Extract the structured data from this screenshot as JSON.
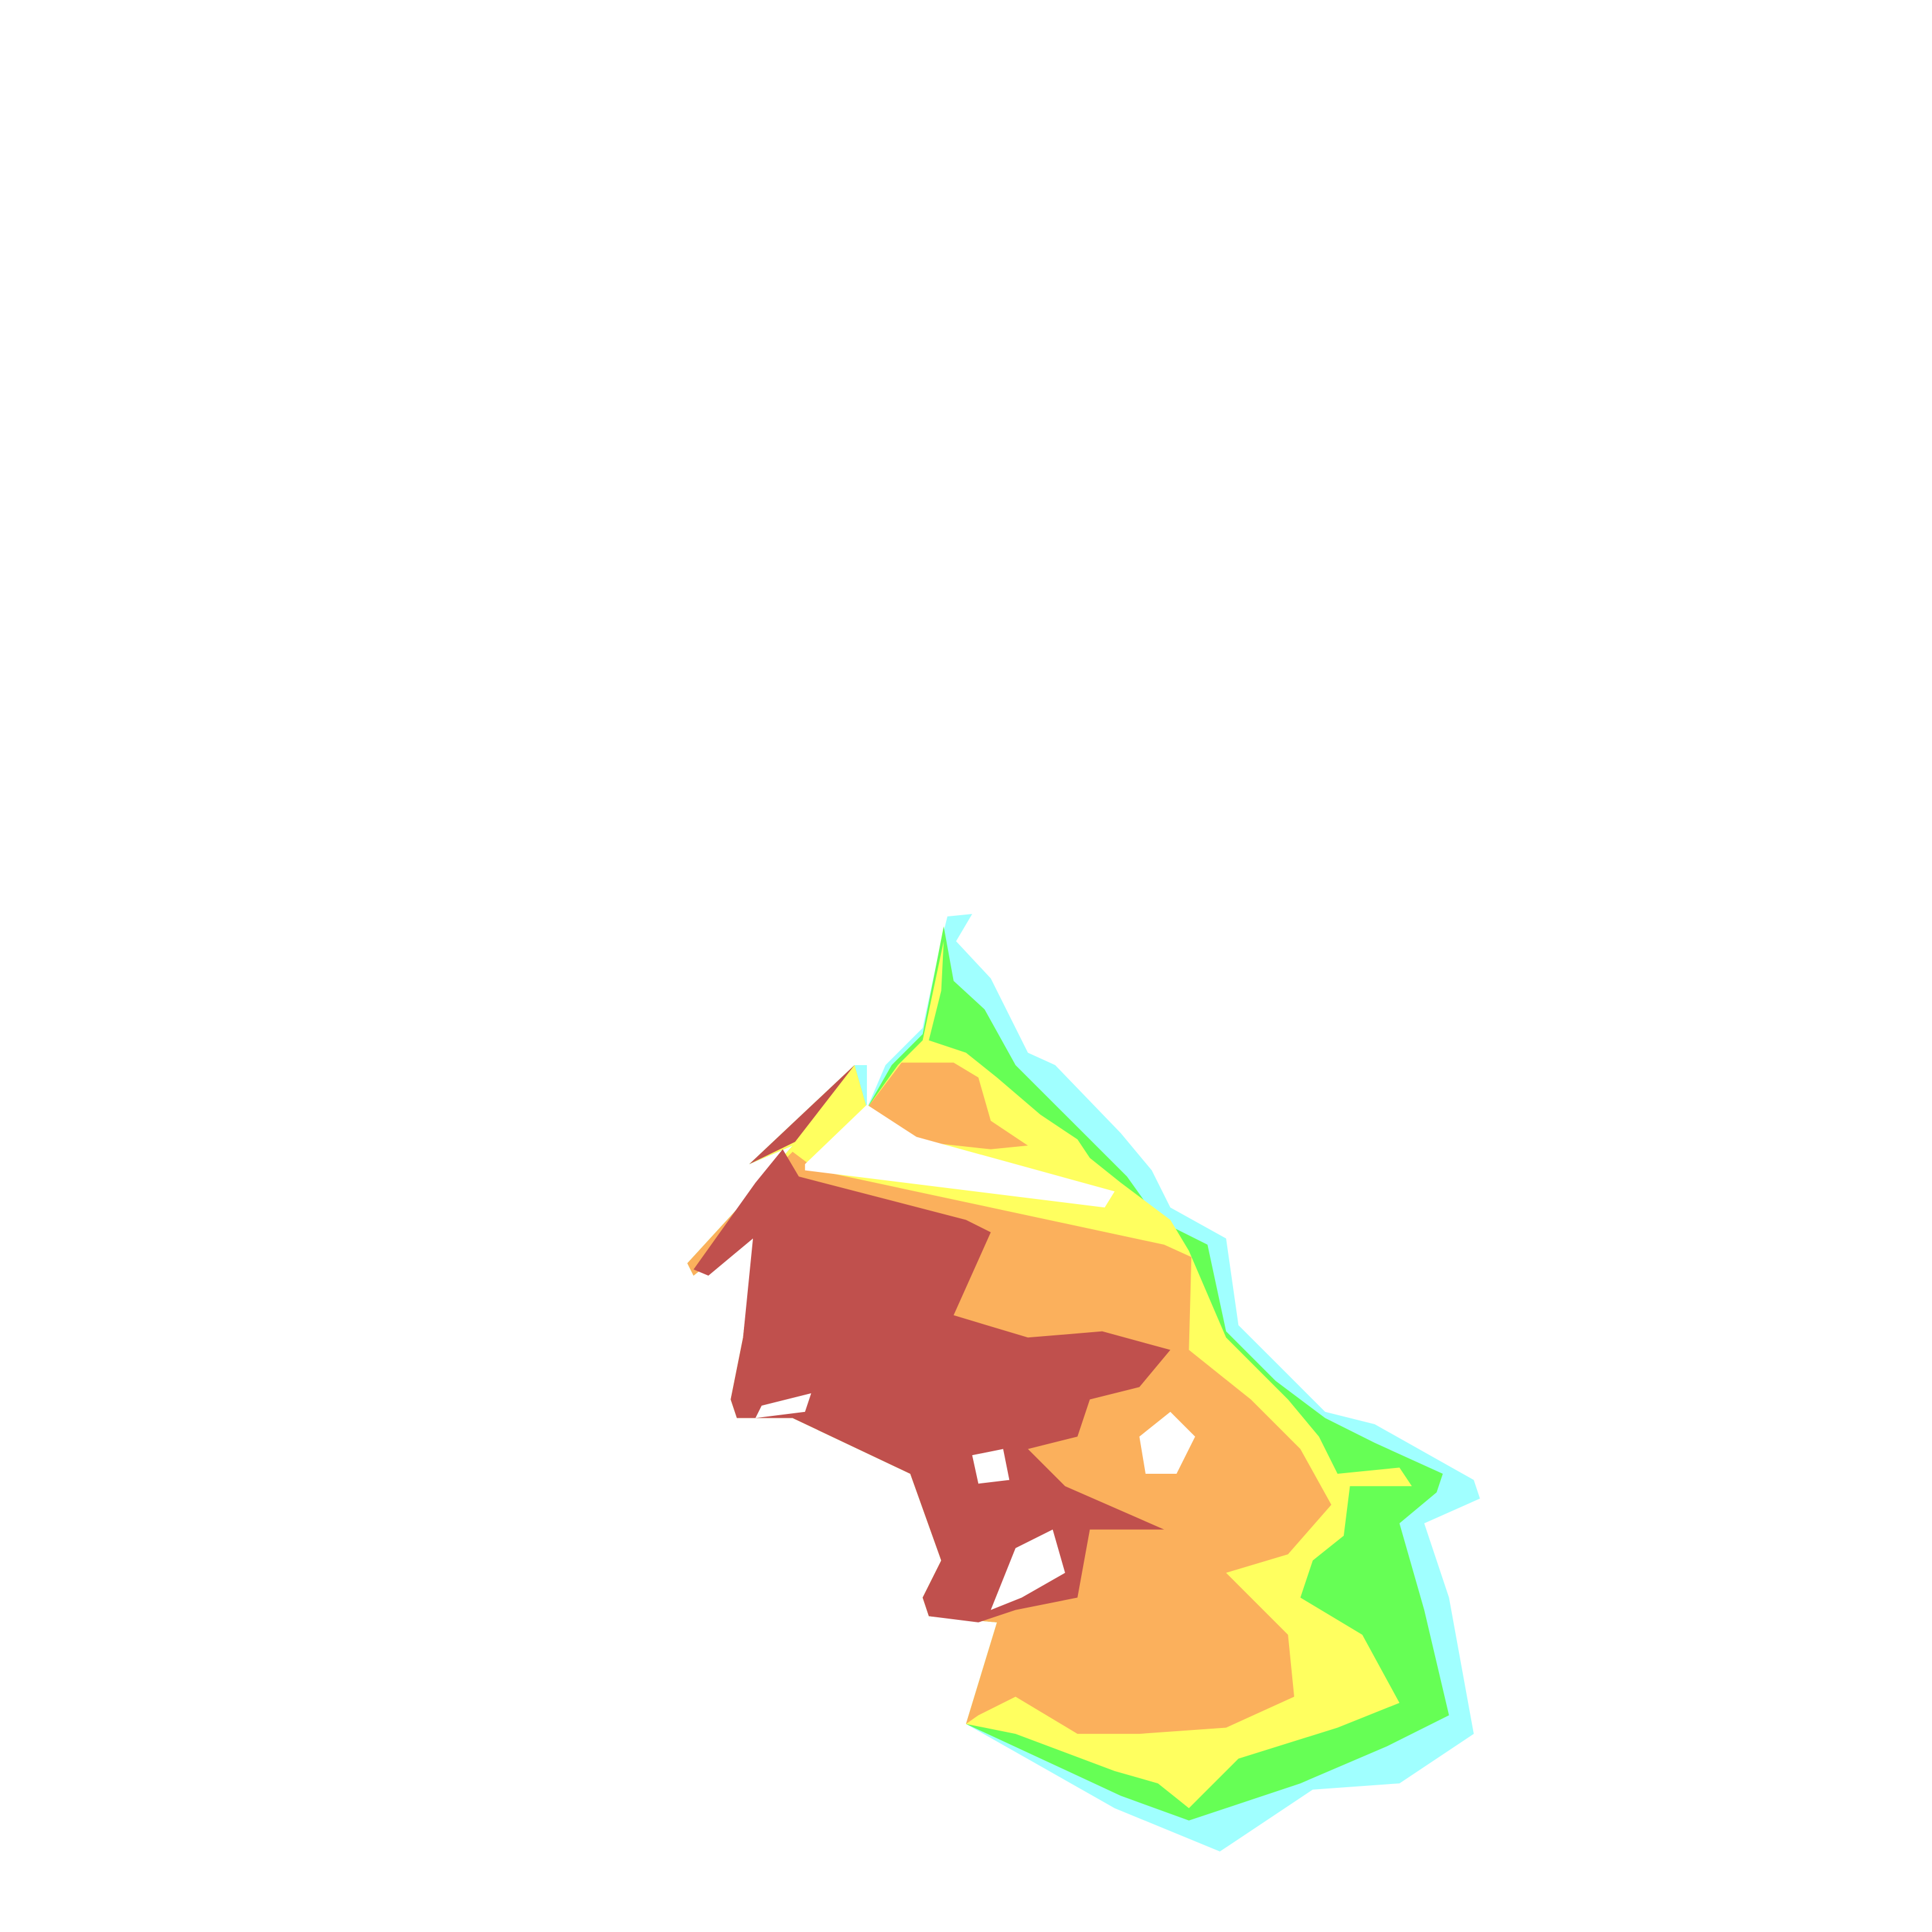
{
  "map": {
    "zone_colors": {
      "zone_1": "#C0504D",
      "zone_2": "#FBB05C",
      "zone_3": "#FFFF5F",
      "zone_4": "#66FF55",
      "zone_5": "#A0FFFF"
    },
    "background": "#FFFFFF"
  }
}
